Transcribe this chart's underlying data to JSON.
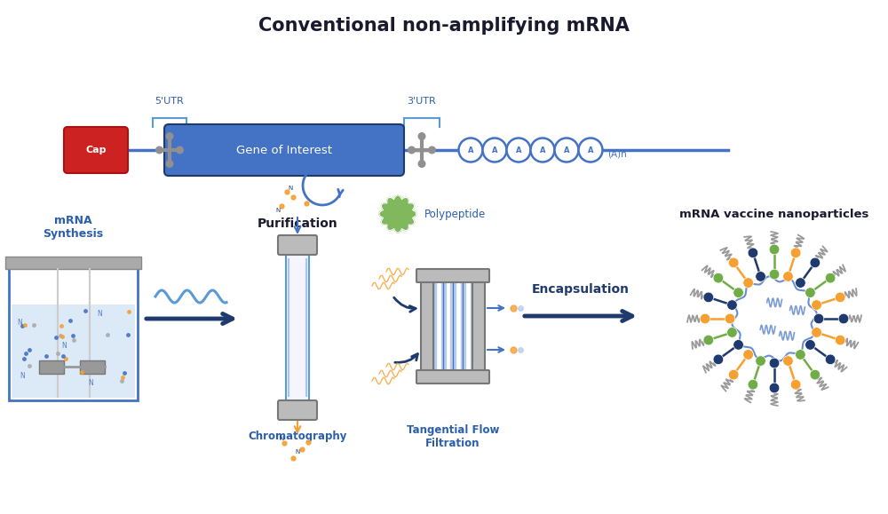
{
  "title": "Conventional non-amplifying mRNA",
  "title_fontsize": 15,
  "title_fontweight": "bold",
  "bg_color": "#ffffff",
  "blue_dark": "#1f3a6e",
  "blue_med": "#4472c4",
  "blue_light": "#aec6e8",
  "blue_pale": "#dce9f7",
  "blue_line": "#5b9bd5",
  "red_cap": "#cc2222",
  "gray_dark": "#777777",
  "gray_med": "#999999",
  "gray_light": "#cccccc",
  "gray_col": "#bbbbbb",
  "orange": "#f5a030",
  "orange_light": "#f5a030",
  "green_np": "#70ad47",
  "green_poly": "#70ad47",
  "text_blue": "#2b5fad",
  "text_dark": "#1a1a2e",
  "arrow_blue": "#1f3a6e",
  "mrna_label": "mRNA\nSynthesis",
  "purification_label": "Purification",
  "chromatography_label": "Chromatography",
  "encapsulation_label": "Encapsulation",
  "tff_label": "Tangential Flow\nFiltration",
  "nanoparticle_label": "mRNA vaccine nanoparticles",
  "cap_label": "Cap",
  "gene_label": "Gene of Interest",
  "utr5_label": "5'UTR",
  "utr3_label": "3'UTR",
  "poly_label": "Polypeptide",
  "an_label": "(A)n"
}
